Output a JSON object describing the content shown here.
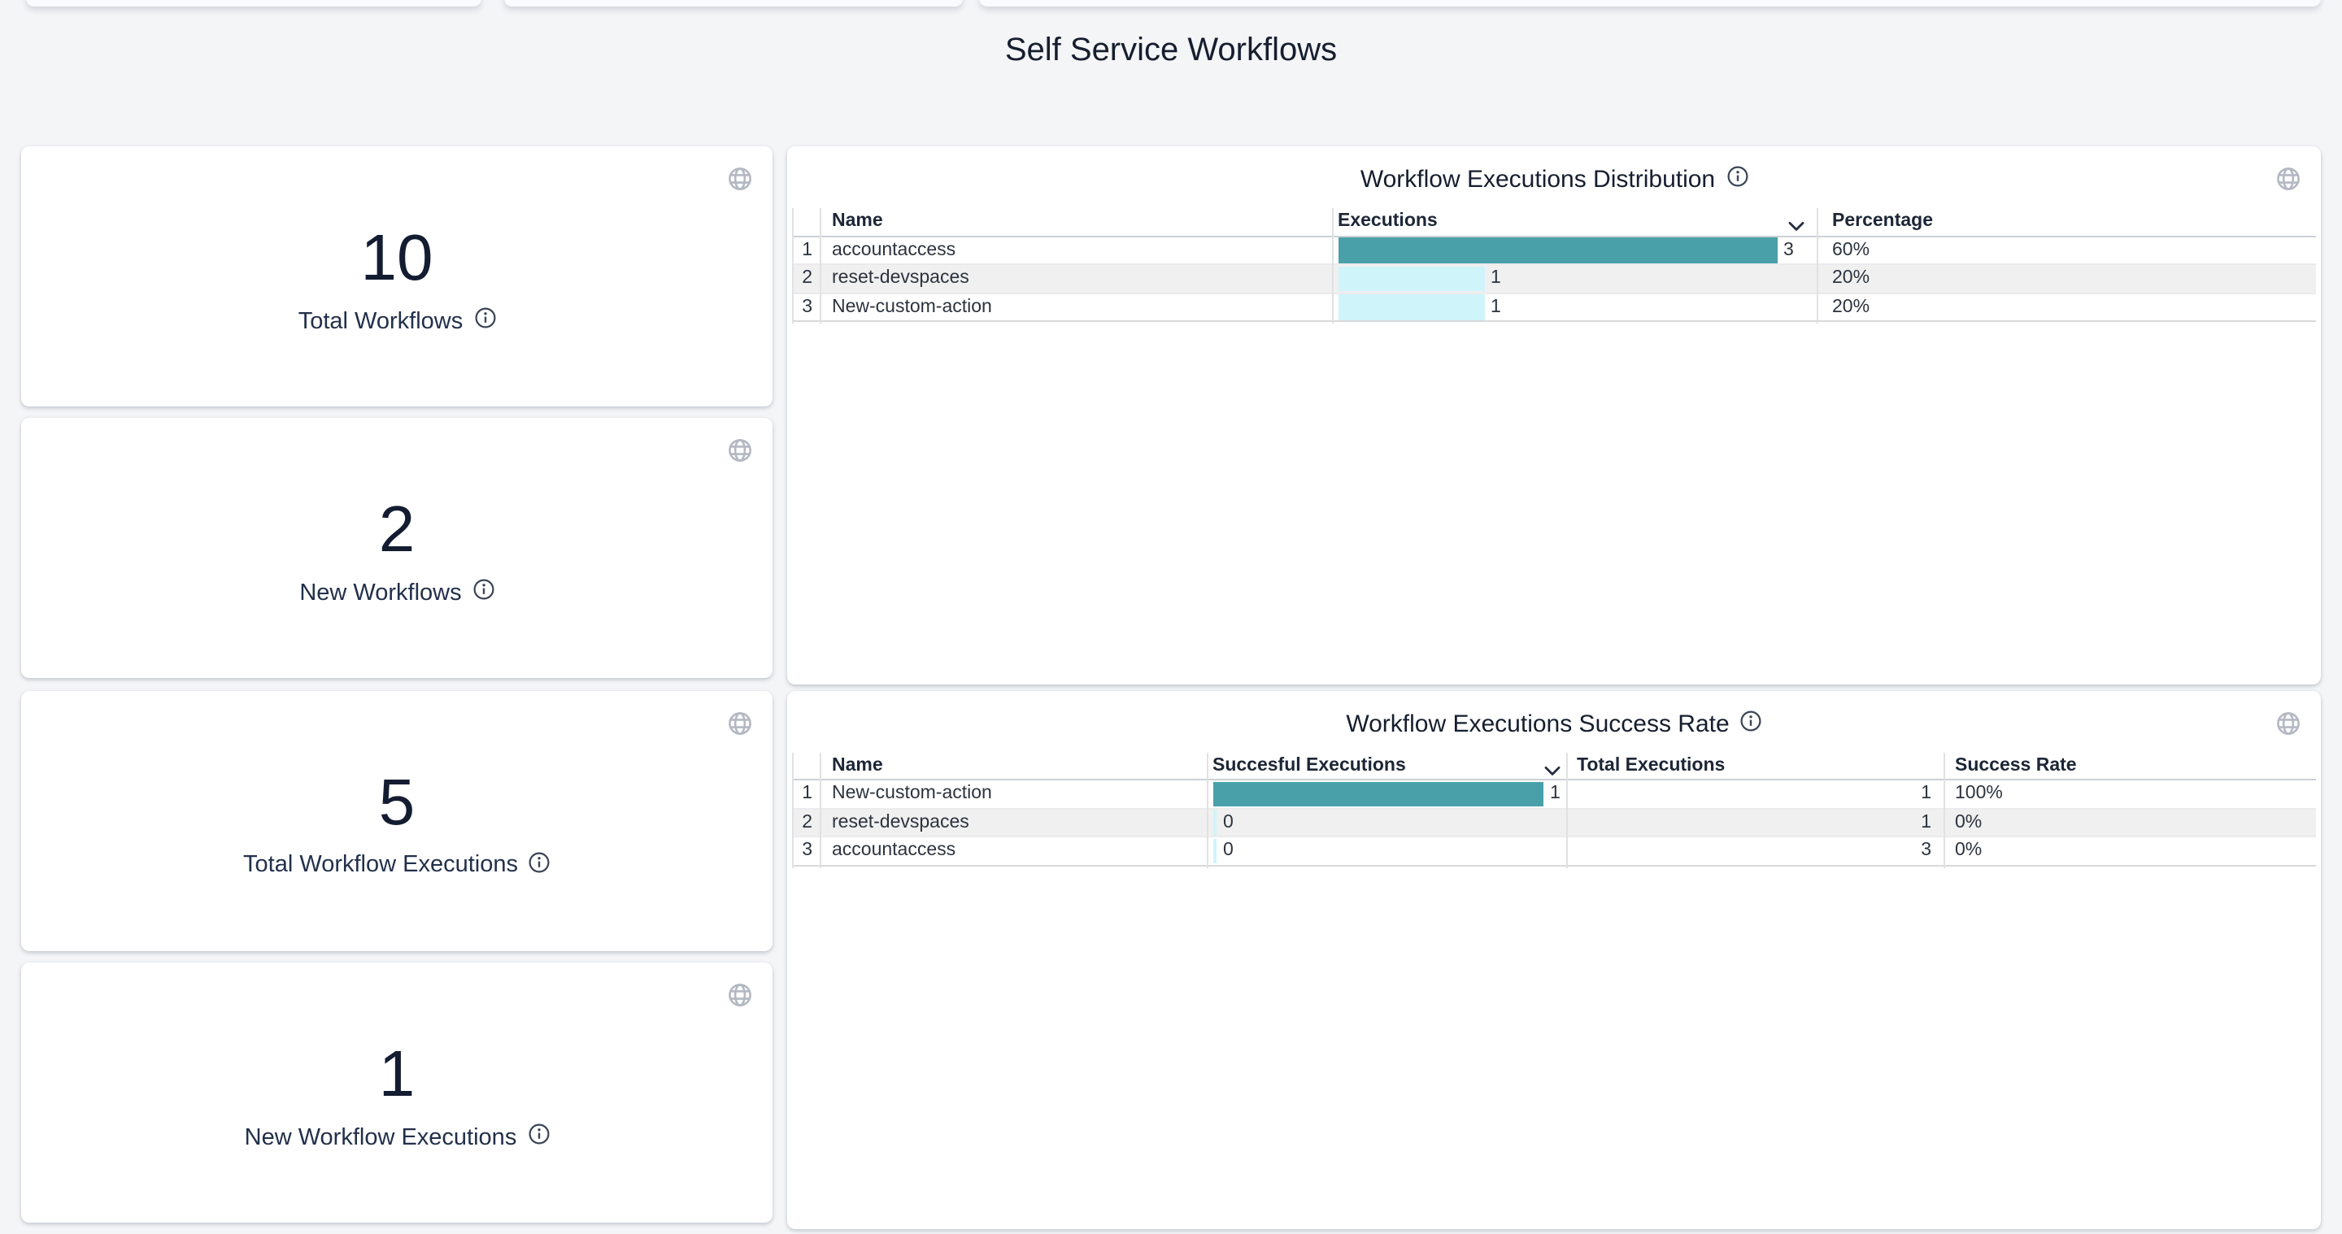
{
  "page": {
    "title": "Self Service Workflows"
  },
  "stat_cards": [
    {
      "value": "10",
      "label": "Total Workflows"
    },
    {
      "value": "2",
      "label": "New Workflows"
    },
    {
      "value": "5",
      "label": "Total Workflow Executions"
    },
    {
      "value": "1",
      "label": "New Workflow Executions"
    }
  ],
  "distribution_table": {
    "title": "Workflow Executions Distribution",
    "columns": [
      "Name",
      "Executions",
      "Percentage"
    ],
    "sorted_column": "Executions",
    "sort_direction": "desc",
    "max_executions": 3,
    "rows": [
      {
        "index": "1",
        "name": "accountaccess",
        "executions": 3,
        "percentage": "60%"
      },
      {
        "index": "2",
        "name": "reset-devspaces",
        "executions": 1,
        "percentage": "20%"
      },
      {
        "index": "3",
        "name": "New-custom-action",
        "executions": 1,
        "percentage": "20%"
      }
    ]
  },
  "success_table": {
    "title": "Workflow Executions Success Rate",
    "columns": [
      "Name",
      "Succesful Executions",
      "Total Executions",
      "Success Rate"
    ],
    "sorted_column": "Succesful Executions",
    "sort_direction": "desc",
    "max_successful": 1,
    "rows": [
      {
        "index": "1",
        "name": "New-custom-action",
        "successful": 1,
        "total": "1",
        "rate": "100%"
      },
      {
        "index": "2",
        "name": "reset-devspaces",
        "successful": 0,
        "total": "1",
        "rate": "0%"
      },
      {
        "index": "3",
        "name": "accountaccess",
        "successful": 0,
        "total": "3",
        "rate": "0%"
      }
    ]
  },
  "chart_data": [
    {
      "type": "bar",
      "title": "Workflow Executions Distribution",
      "categories": [
        "accountaccess",
        "reset-devspaces",
        "New-custom-action"
      ],
      "values": [
        3,
        1,
        1
      ],
      "percentages": [
        "60%",
        "20%",
        "20%"
      ],
      "xlim": [
        0,
        3
      ]
    },
    {
      "type": "bar",
      "title": "Workflow Executions Success Rate",
      "categories": [
        "New-custom-action",
        "reset-devspaces",
        "accountaccess"
      ],
      "values": [
        1,
        0,
        0
      ],
      "totals": [
        1,
        1,
        3
      ],
      "rates": [
        "100%",
        "0%",
        "0%"
      ],
      "xlim": [
        0,
        1
      ]
    }
  ],
  "icons": {
    "globe": "globe-icon",
    "info": "info-icon",
    "sort_desc": "chevron-down-icon"
  },
  "colors": {
    "bar_max": "#49a0a8",
    "bar_low": "#cff5fb",
    "row_stripe": "#f0f0f0",
    "background": "#f4f5f7",
    "card": "#ffffff",
    "text_dark": "#1a2233",
    "icon_gray": "#b3b8c3"
  }
}
